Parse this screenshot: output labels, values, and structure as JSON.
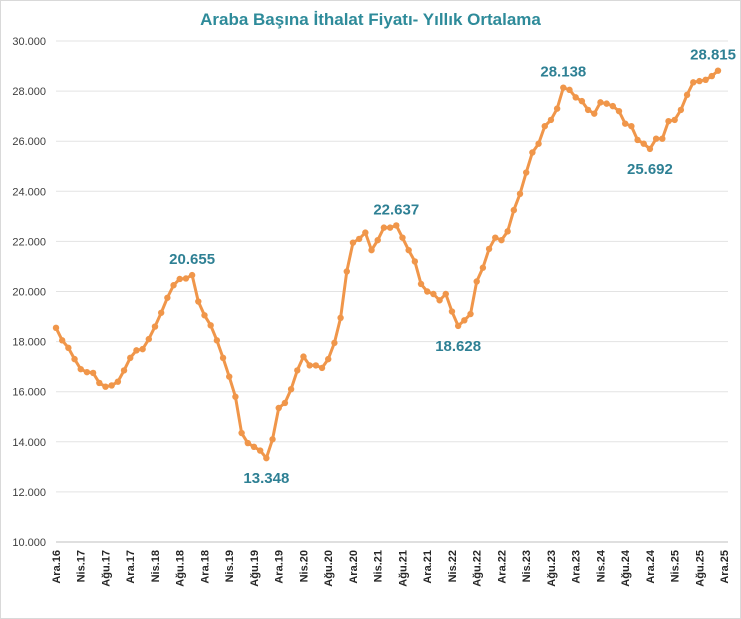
{
  "chart_data": {
    "type": "line",
    "title": "Araba Başına İthalat Fiyatı- Yıllık Ortalama",
    "xlabel": "",
    "ylabel": "",
    "ylim": [
      10000,
      30000
    ],
    "yticks": [
      10000,
      12000,
      14000,
      16000,
      18000,
      20000,
      22000,
      24000,
      26000,
      28000,
      30000
    ],
    "ytick_labels": [
      "10.000",
      "12.000",
      "14.000",
      "16.000",
      "18.000",
      "20.000",
      "22.000",
      "24.000",
      "26.000",
      "28.000",
      "30.000"
    ],
    "grid": true,
    "color": "#F0964A",
    "xtick_labels": [
      "Ara.16",
      "Nis.17",
      "Ağu.17",
      "Ara.17",
      "Nis.18",
      "Ağu.18",
      "Ara.18",
      "Nis.19",
      "Ağu.19",
      "Ara.19",
      "Nis.20",
      "Ağu.20",
      "Ara.20",
      "Nis.21",
      "Ağu.21",
      "Ara.21",
      "Nis.22",
      "Ağu.22",
      "Ara.22",
      "Nis.23",
      "Ağu.23",
      "Ara.23",
      "Nis.24",
      "Ağu.24",
      "Ara.24",
      "Nis.25",
      "Ağu.25",
      "Ara.25"
    ],
    "series": [
      {
        "name": "Araba Başına İthalat Fiyatı",
        "values": [
          18550,
          18050,
          17750,
          17300,
          16900,
          16780,
          16750,
          16350,
          16200,
          16250,
          16400,
          16850,
          17350,
          17650,
          17700,
          18100,
          18600,
          19150,
          19750,
          20250,
          20500,
          20520,
          20655,
          19600,
          19050,
          18650,
          18050,
          17350,
          16600,
          15800,
          14350,
          13950,
          13800,
          13650,
          13348,
          14100,
          15350,
          15550,
          16100,
          16850,
          17400,
          17050,
          17050,
          16950,
          17300,
          17950,
          18950,
          20800,
          21950,
          22100,
          22350,
          21650,
          22050,
          22550,
          22550,
          22637,
          22150,
          21650,
          21200,
          20300,
          20000,
          19900,
          19650,
          19900,
          19200,
          18628,
          18850,
          19100,
          20400,
          20950,
          21700,
          22150,
          22050,
          22400,
          23250,
          23900,
          24750,
          25550,
          25900,
          26600,
          26850,
          27300,
          28138,
          28050,
          27750,
          27600,
          27250,
          27100,
          27550,
          27500,
          27400,
          27200,
          26700,
          26600,
          26050,
          25900,
          25692,
          26100,
          26100,
          26800,
          26850,
          27250,
          27850,
          28350,
          28400,
          28450,
          28600,
          28815
        ]
      }
    ],
    "annotations": [
      {
        "index": 22,
        "text": "20.655",
        "position": "above"
      },
      {
        "index": 34,
        "text": "13.348",
        "position": "below"
      },
      {
        "index": 55,
        "text": "22.637",
        "position": "above"
      },
      {
        "index": 65,
        "text": "18.628",
        "position": "below"
      },
      {
        "index": 82,
        "text": "28.138",
        "position": "above"
      },
      {
        "index": 96,
        "text": "25.692",
        "position": "below"
      },
      {
        "index": 107,
        "text": "28.815",
        "position": "above"
      }
    ]
  }
}
